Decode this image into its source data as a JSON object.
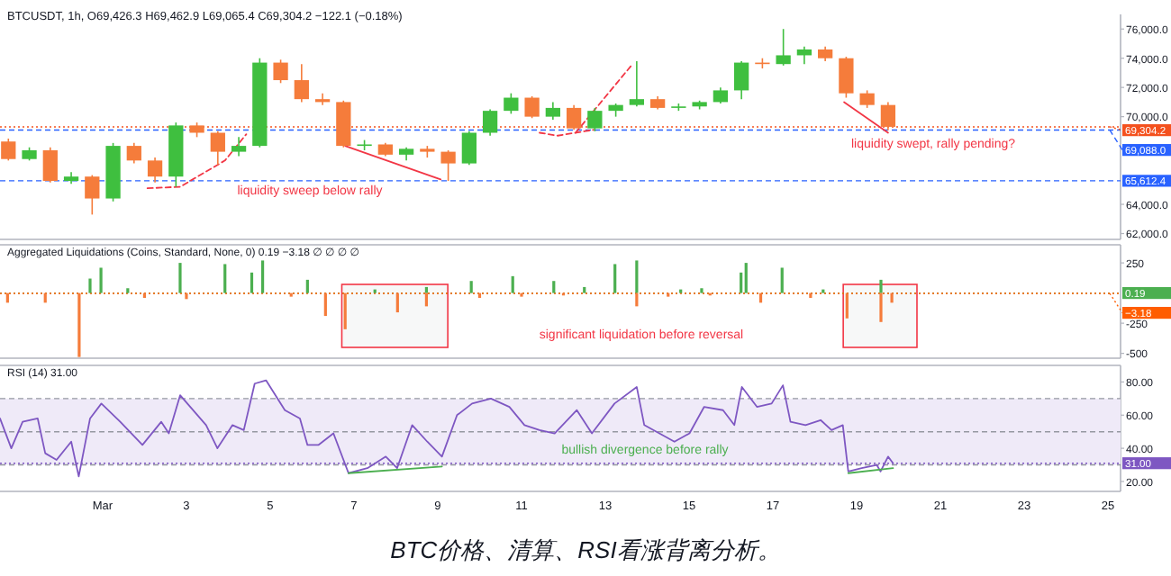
{
  "chart_data": [
    {
      "type": "candlestick",
      "title": "BTCUSDT, 1h, O69,426.3 H69,462.9 L69,065.4 C69,304.2 −122.1 (−0.18%)",
      "xlim": [
        -1.45,
        25.3
      ],
      "ylim": [
        61600,
        77000
      ],
      "tick_labels": "y",
      "yticks": [
        {
          "value": 76000,
          "label": "76,000.0"
        },
        {
          "value": 74000,
          "label": "74,000.0"
        },
        {
          "value": 72000,
          "label": "72,000.0"
        },
        {
          "value": 70000,
          "label": "70,000.0"
        },
        {
          "value": 64000,
          "label": "64,000.0"
        },
        {
          "value": 62000,
          "label": "62,000.0"
        }
      ],
      "series": [
        {
          "type": "line",
          "color": "#f23645",
          "line_style": "solid",
          "x": [
            6.79,
            9.07
          ],
          "values": [
            68000,
            65700
          ]
        },
        {
          "type": "line",
          "color": "#f23645",
          "line_style": "solid",
          "x": [
            18.7,
            19.75
          ],
          "values": [
            71000,
            68900
          ]
        },
        {
          "type": "line",
          "color": "#f23645",
          "line_style": "dashed",
          "x": [
            2.07,
            2.85,
            3.92,
            4.43
          ],
          "values": [
            65100,
            65200,
            67000,
            68800
          ]
        },
        {
          "type": "line",
          "color": "#f23645",
          "line_style": "dashed",
          "x": [
            11.43,
            11.86,
            12.72
          ],
          "values": [
            68900,
            68700,
            69100
          ]
        },
        {
          "type": "line",
          "color": "#f23645",
          "line_style": "dashed",
          "x": [
            12.29,
            13.65
          ],
          "values": [
            68900,
            73600
          ]
        },
        {
          "x": [
            -1.25,
            -0.75,
            -0.25,
            0.25,
            0.75,
            1.25,
            1.75,
            2.25,
            2.75,
            3.25,
            3.75,
            4.25,
            4.75,
            5.25,
            5.75,
            6.25,
            6.75,
            7.25,
            7.75,
            8.25,
            8.75,
            9.25,
            9.75,
            10.25,
            10.75,
            11.25,
            11.75,
            12.25,
            12.75,
            13.25,
            13.75,
            14.25,
            14.75,
            15.25,
            15.75,
            16.25,
            16.75,
            17.25,
            17.75,
            18.25,
            18.75,
            19.25,
            19.75
          ],
          "ohlc": [
            [
              68300,
              68500,
              67000,
              67100
            ],
            [
              67100,
              67900,
              67000,
              67700
            ],
            [
              67700,
              67900,
              65500,
              65600
            ],
            [
              65600,
              66200,
              65400,
              65900
            ],
            [
              65900,
              66000,
              63300,
              64400
            ],
            [
              64400,
              68200,
              64200,
              68000
            ],
            [
              68000,
              68200,
              66800,
              67000
            ],
            [
              67000,
              67200,
              65500,
              65900
            ],
            [
              65900,
              69600,
              65200,
              69400
            ],
            [
              69400,
              69600,
              68600,
              68900
            ],
            [
              68900,
              69000,
              66700,
              67600
            ],
            [
              67600,
              68600,
              67300,
              68000
            ],
            [
              68000,
              74000,
              67900,
              73700
            ],
            [
              73700,
              73900,
              72300,
              72500
            ],
            [
              72500,
              73600,
              71000,
              71200
            ],
            [
              71200,
              71600,
              70800,
              71000
            ],
            [
              71000,
              71100,
              67900,
              68000
            ],
            [
              68000,
              68400,
              67700,
              68100
            ],
            [
              68100,
              68200,
              67300,
              67400
            ],
            [
              67400,
              67900,
              67000,
              67800
            ],
            [
              67800,
              68000,
              67200,
              67600
            ],
            [
              67600,
              67700,
              65600,
              66800
            ],
            [
              66800,
              69000,
              66700,
              68900
            ],
            [
              68900,
              70500,
              68700,
              70400
            ],
            [
              70400,
              71600,
              70200,
              71300
            ],
            [
              71300,
              71400,
              69900,
              70000
            ],
            [
              70000,
              71000,
              69800,
              70600
            ],
            [
              70600,
              70800,
              69100,
              69200
            ],
            [
              69200,
              70600,
              69000,
              70400
            ],
            [
              70400,
              70900,
              70000,
              70800
            ],
            [
              70800,
              73800,
              70700,
              71200
            ],
            [
              71200,
              71400,
              70500,
              70600
            ],
            [
              70600,
              70900,
              70400,
              70700
            ],
            [
              70700,
              71100,
              70500,
              71000
            ],
            [
              71000,
              72000,
              70900,
              71800
            ],
            [
              71800,
              73800,
              71200,
              73700
            ],
            [
              73700,
              74000,
              73300,
              73600
            ],
            [
              73600,
              76000,
              73500,
              74200
            ],
            [
              74200,
              74800,
              73600,
              74600
            ],
            [
              74600,
              74800,
              73800,
              74000
            ],
            [
              74000,
              74100,
              71300,
              71600
            ],
            [
              71600,
              71800,
              70600,
              70800
            ],
            [
              70800,
              71000,
              69065,
              69304
            ]
          ],
          "colors": [
            "#f57c3b",
            "#3fbf3f",
            "#f57c3b",
            "#3fbf3f",
            "#f57c3b",
            "#3fbf3f",
            "#f57c3b",
            "#f57c3b",
            "#3fbf3f",
            "#f57c3b",
            "#f57c3b",
            "#3fbf3f",
            "#3fbf3f",
            "#f57c3b",
            "#f57c3b",
            "#f57c3b",
            "#f57c3b",
            "#3fbf3f",
            "#f57c3b",
            "#3fbf3f",
            "#f57c3b",
            "#f57c3b",
            "#3fbf3f",
            "#3fbf3f",
            "#3fbf3f",
            "#f57c3b",
            "#3fbf3f",
            "#f57c3b",
            "#3fbf3f",
            "#3fbf3f",
            "#3fbf3f",
            "#f57c3b",
            "#3fbf3f",
            "#3fbf3f",
            "#3fbf3f",
            "#3fbf3f",
            "#f57c3b",
            "#3fbf3f",
            "#3fbf3f",
            "#f57c3b",
            "#f57c3b",
            "#f57c3b",
            "#f57c3b"
          ]
        }
      ],
      "ref_lines": [
        {
          "axis": "y",
          "value": 69304.2,
          "label": "69,304.2",
          "color": "#f4511e",
          "line_style": "dotted"
        },
        {
          "axis": "y",
          "value": 69088,
          "label": "69,088.0",
          "color": "#2962ff",
          "line_style": "dashed"
        },
        {
          "axis": "y",
          "value": 65612.4,
          "label": "65,612.4",
          "color": "#2962ff",
          "line_style": "dashed"
        }
      ],
      "annotations": [
        "liquidity sweep below rally",
        "liquidity swept, rally pending?"
      ]
    },
    {
      "type": "bar",
      "title": "Aggregated Liquidations (Coins, Standard, None, 0) 0.19 −3.18 ∅ ∅ ∅ ∅",
      "xlim": [
        -1.45,
        25.3
      ],
      "ylim": [
        -540,
        400
      ],
      "tick_labels": "y",
      "yticks": [
        250,
        -250,
        -500
      ],
      "series": [
        {
          "color": "#4caf50",
          "x": [
            0.7,
            0.96,
            1.6,
            2.85,
            3.92,
            4.56,
            4.82,
            5.89,
            7.5,
            8.73,
            9.8,
            10.79,
            11.77,
            12.5,
            13.23,
            13.75,
            14.8,
            15.3,
            16.24,
            16.36,
            17.22,
            18.2,
            19.58
          ],
          "values": [
            120,
            210,
            40,
            250,
            240,
            170,
            270,
            110,
            30,
            50,
            100,
            140,
            100,
            50,
            240,
            270,
            30,
            40,
            170,
            250,
            210,
            30,
            110
          ]
        },
        {
          "color": "#f57c3b",
          "x": [
            -1.27,
            -0.37,
            0.44,
            2.0,
            3.0,
            5.5,
            6.32,
            6.79,
            8.04,
            8.73,
            10.0,
            11.0,
            12.0,
            13.75,
            14.5,
            15.5,
            16.71,
            17.9,
            18.77,
            19.58,
            19.84
          ],
          "values": [
            -80,
            -80,
            -530,
            -40,
            -50,
            -30,
            -190,
            -300,
            -160,
            -110,
            -40,
            -30,
            -20,
            -110,
            -30,
            -20,
            -80,
            -40,
            -210,
            -240,
            -80
          ]
        }
      ],
      "ref_lines": [
        {
          "axis": "y",
          "value": 0.19,
          "label": "0.19",
          "color": "#4caf50",
          "line_style": "dotted"
        },
        {
          "axis": "y",
          "value": -3.18,
          "label": "−3.18",
          "color": "#ff5d00",
          "line_style": "dotted"
        }
      ],
      "bands": [
        {
          "axis": "x",
          "from": 6.71,
          "to": 9.24,
          "color": "#f23645"
        },
        {
          "axis": "x",
          "from": 18.68,
          "to": 20.44,
          "color": "#f23645"
        }
      ],
      "annotations": [
        "significant liquidation before reversal"
      ]
    },
    {
      "type": "line",
      "title": "RSI (14) 31.00",
      "xlim": [
        -1.45,
        25.3
      ],
      "ylim": [
        14,
        90
      ],
      "yticks": [
        {
          "value": 20,
          "label": "20.00"
        },
        {
          "value": 40,
          "label": "40.00"
        },
        {
          "value": 60,
          "label": "60.00"
        },
        {
          "value": 80,
          "label": "80.00"
        }
      ],
      "xticks": [
        {
          "value": 1,
          "label": "Mar"
        },
        3,
        5,
        7,
        9,
        11,
        13,
        15,
        17,
        19,
        21,
        23,
        25
      ],
      "series": [
        {
          "color": "#7e57c2",
          "x": [
            -1.45,
            -1.18,
            -0.91,
            -0.55,
            -0.37,
            -0.1,
            0.25,
            0.43,
            0.7,
            0.97,
            1.42,
            1.95,
            2.4,
            2.58,
            2.85,
            3.47,
            3.74,
            4.1,
            4.37,
            4.63,
            4.9,
            5.35,
            5.71,
            5.89,
            6.15,
            6.51,
            6.87,
            7.32,
            7.76,
            8.03,
            8.39,
            8.75,
            9.1,
            9.46,
            9.82,
            10.27,
            10.71,
            11.07,
            11.43,
            11.79,
            12.32,
            12.68,
            13.22,
            13.75,
            13.93,
            14.29,
            14.65,
            15.01,
            15.36,
            15.81,
            16.08,
            16.26,
            16.62,
            16.97,
            17.24,
            17.42,
            17.78,
            18.14,
            18.4,
            18.67,
            18.8,
            19.12,
            19.48,
            19.57,
            19.75,
            19.87
          ],
          "values": [
            58,
            40,
            56,
            58,
            37,
            33,
            44,
            23,
            58,
            67,
            56,
            42,
            56,
            49,
            72,
            54,
            40,
            54,
            51,
            79,
            81,
            63,
            58,
            42,
            42,
            49,
            25,
            28,
            35,
            28,
            54,
            44,
            35,
            60,
            67,
            70,
            65,
            54,
            51,
            49,
            63,
            49,
            67,
            77,
            54,
            49,
            44,
            49,
            65,
            63,
            54,
            77,
            65,
            67,
            78,
            56,
            54,
            57,
            51,
            54,
            26,
            28,
            30,
            26,
            35,
            31
          ]
        },
        {
          "color": "#4caf50",
          "x": [
            6.87,
            9.1
          ],
          "values": [
            25,
            29
          ]
        },
        {
          "color": "#4caf50",
          "x": [
            18.8,
            19.87
          ],
          "values": [
            25,
            28
          ]
        }
      ],
      "bands": [
        {
          "axis": "y",
          "from": 30,
          "to": 70,
          "color": "#efeaf8"
        }
      ],
      "ref_lines": [
        {
          "axis": "y",
          "value": 70,
          "color": "#9598a1",
          "line_style": "dashed"
        },
        {
          "axis": "y",
          "value": 50,
          "color": "#9598a1",
          "line_style": "dashed"
        },
        {
          "axis": "y",
          "value": 30,
          "color": "#9598a1",
          "line_style": "dashed"
        },
        {
          "axis": "y",
          "value": 31,
          "label": "31.00",
          "color": "#7e57c2",
          "line_style": "dotted"
        }
      ],
      "annotations": [
        "bullish divergence before rally",
        "BTC价格、清算、RSI看涨背离分析。"
      ]
    }
  ]
}
